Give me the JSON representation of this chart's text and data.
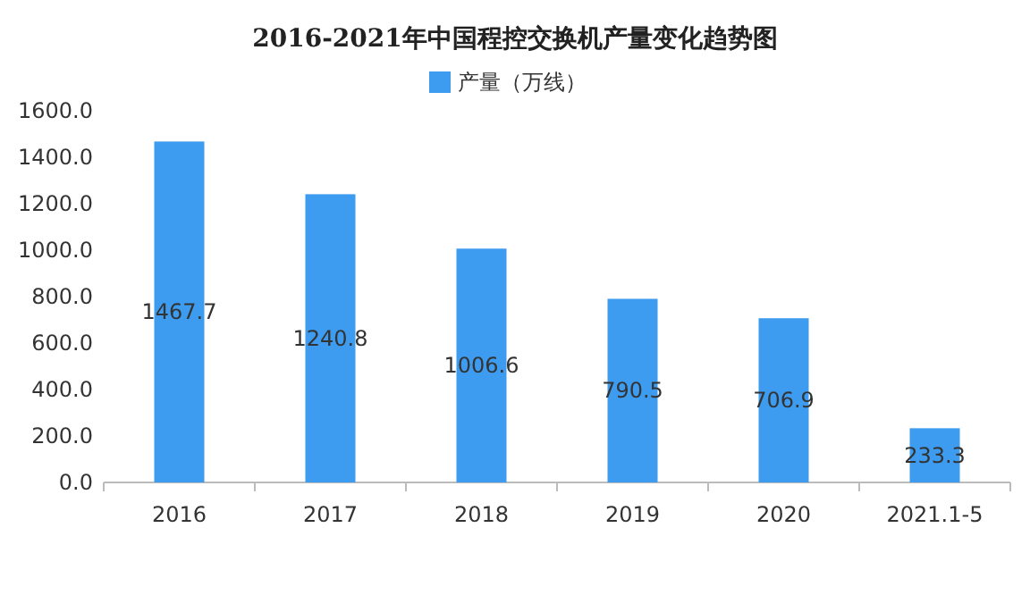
{
  "chart_data": {
    "type": "bar",
    "title": "2016-2021年中国程控交换机产量变化趋势图",
    "categories": [
      "2016",
      "2017",
      "2018",
      "2019",
      "2020",
      "2021.1-5"
    ],
    "series": [
      {
        "name": "产量（万线）",
        "color": "#3d9cf0",
        "values": [
          1467.7,
          1240.8,
          1006.6,
          790.5,
          706.9,
          233.3
        ]
      }
    ],
    "ylim": [
      0,
      1600
    ],
    "yticks": [
      {
        "value": 0,
        "label": "0.0"
      },
      {
        "value": 200,
        "label": "200.0"
      },
      {
        "value": 400,
        "label": "400.0"
      },
      {
        "value": 600,
        "label": "600.0"
      },
      {
        "value": 800,
        "label": "800.0"
      },
      {
        "value": 1000,
        "label": "1000.0"
      },
      {
        "value": 1200,
        "label": "1200.0"
      },
      {
        "value": 1400,
        "label": "1400.0"
      },
      {
        "value": 1600,
        "label": "1600.0"
      }
    ],
    "data_labels": true,
    "legend": "top"
  }
}
